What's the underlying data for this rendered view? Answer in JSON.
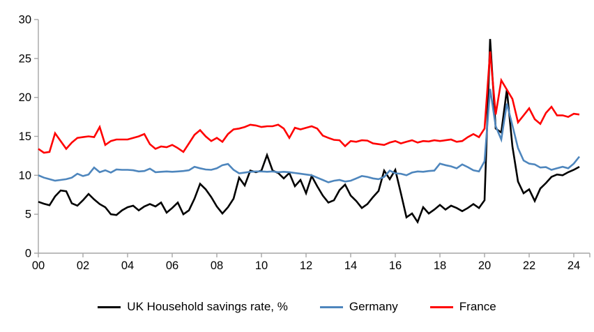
{
  "chart_data": {
    "type": "line",
    "title": "",
    "xlabel": "",
    "ylabel": "",
    "ylim": [
      0,
      30
    ],
    "y_ticks": [
      0,
      5,
      10,
      15,
      20,
      25,
      30
    ],
    "x_tick_labels": [
      "00",
      "02",
      "04",
      "06",
      "08",
      "10",
      "12",
      "14",
      "16",
      "18",
      "20",
      "22",
      "24"
    ],
    "x_frequency": "quarterly",
    "x_start": "2000Q1",
    "x_end": "2024Q2",
    "grid": "off",
    "legend_position": "bottom",
    "axis_color": "#a6a6a6",
    "series": [
      {
        "name": "UK Household savings rate, %",
        "color": "#000000",
        "values": [
          6.6,
          6.35,
          6.15,
          7.3,
          8.05,
          7.95,
          6.4,
          6.1,
          6.8,
          7.6,
          6.9,
          6.3,
          5.9,
          5.0,
          4.9,
          5.5,
          5.9,
          6.1,
          5.5,
          6.0,
          6.3,
          6.0,
          6.5,
          5.2,
          5.8,
          6.5,
          5.0,
          5.5,
          7.0,
          8.9,
          8.2,
          7.2,
          6.0,
          5.1,
          5.9,
          7.0,
          9.7,
          8.7,
          10.6,
          10.4,
          10.6,
          12.6,
          10.6,
          10.3,
          9.6,
          10.3,
          8.6,
          9.4,
          7.7,
          9.9,
          8.6,
          7.4,
          6.5,
          6.8,
          8.1,
          8.8,
          7.4,
          6.7,
          5.8,
          6.3,
          7.2,
          8.0,
          10.6,
          9.5,
          10.7,
          7.7,
          4.6,
          5.1,
          4.0,
          5.9,
          5.1,
          5.6,
          6.2,
          5.6,
          6.1,
          5.8,
          5.4,
          5.8,
          6.3,
          5.8,
          6.8,
          27.5,
          16.0,
          15.5,
          21.0,
          13.7,
          9.2,
          7.7,
          8.2,
          6.7,
          8.3,
          9.0,
          9.8,
          10.1,
          10.0,
          10.4,
          10.7,
          11.1
        ]
      },
      {
        "name": "Germany",
        "color": "#4e86bd",
        "values": [
          10.0,
          9.7,
          9.5,
          9.3,
          9.4,
          9.5,
          9.7,
          10.2,
          9.9,
          10.1,
          11.0,
          10.4,
          10.65,
          10.35,
          10.75,
          10.7,
          10.7,
          10.65,
          10.5,
          10.55,
          10.85,
          10.4,
          10.45,
          10.5,
          10.45,
          10.5,
          10.55,
          10.65,
          11.1,
          10.9,
          10.75,
          10.7,
          10.9,
          11.3,
          11.45,
          10.7,
          10.25,
          10.35,
          10.45,
          10.5,
          10.5,
          10.45,
          10.5,
          10.4,
          10.45,
          10.4,
          10.3,
          10.2,
          10.1,
          10.0,
          9.7,
          9.4,
          9.1,
          9.3,
          9.4,
          9.2,
          9.3,
          9.6,
          9.9,
          9.8,
          9.6,
          9.5,
          9.8,
          10.6,
          10.25,
          10.2,
          10.0,
          10.35,
          10.5,
          10.45,
          10.55,
          10.6,
          11.5,
          11.3,
          11.15,
          10.9,
          11.4,
          11.05,
          10.65,
          10.5,
          11.8,
          21.1,
          16.3,
          14.6,
          19.2,
          16.4,
          13.5,
          11.9,
          11.5,
          11.4,
          11.0,
          11.05,
          10.7,
          10.9,
          11.1,
          10.9,
          11.5,
          12.4
        ]
      },
      {
        "name": "France",
        "color": "#ff0000",
        "values": [
          13.4,
          12.9,
          13.0,
          15.4,
          14.4,
          13.4,
          14.2,
          14.8,
          14.9,
          15.0,
          14.9,
          16.2,
          13.9,
          14.4,
          14.6,
          14.6,
          14.6,
          14.8,
          15.0,
          15.3,
          14.0,
          13.4,
          13.7,
          13.6,
          13.9,
          13.5,
          13.0,
          14.1,
          15.2,
          15.8,
          15.0,
          14.4,
          14.8,
          14.3,
          15.3,
          15.9,
          16.0,
          16.2,
          16.5,
          16.4,
          16.2,
          16.3,
          16.3,
          16.5,
          16.0,
          14.8,
          16.1,
          15.9,
          16.1,
          16.3,
          16.0,
          15.1,
          14.8,
          14.55,
          14.5,
          13.75,
          14.4,
          14.3,
          14.5,
          14.45,
          14.1,
          14.0,
          13.9,
          14.2,
          14.4,
          14.1,
          14.3,
          14.5,
          14.2,
          14.4,
          14.35,
          14.5,
          14.4,
          14.5,
          14.6,
          14.3,
          14.4,
          14.9,
          15.3,
          14.9,
          16.0,
          25.9,
          17.8,
          22.2,
          21.0,
          19.8,
          16.8,
          17.7,
          18.6,
          17.2,
          16.6,
          18.0,
          18.8,
          17.7,
          17.7,
          17.5,
          17.9,
          17.8
        ]
      }
    ]
  }
}
